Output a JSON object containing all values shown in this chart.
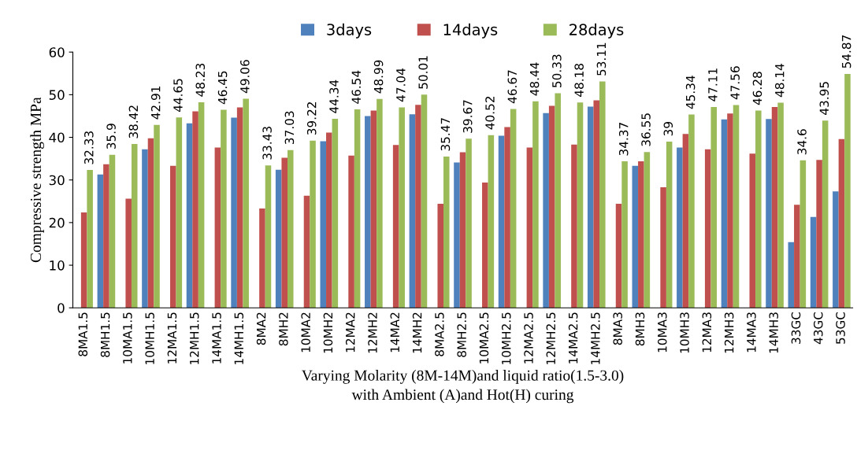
{
  "chart_data": {
    "type": "bar",
    "xlabel": "Varying Molarity (8M-14M)and liquid ratio(1.5-3.0)\nwith Ambient (A)and Hot(H) curing",
    "ylabel": "Compressive strength MPa",
    "categories": [
      "8MA1.5",
      "8MH1.5",
      "10MA1.5",
      "10MH1.5",
      "12MA1.5",
      "12MH1.5",
      "14MA1.5",
      "14MH1.5",
      "8MA2",
      "8MH2",
      "10MA2",
      "10MH2",
      "12MA2",
      "12MH2",
      "14MA2",
      "14MH2",
      "8MA2.5",
      "8MH2.5",
      "10MA2.5",
      "10MH2.5",
      "12MA2.5",
      "12MH2.5",
      "14MA2.5",
      "14MH2.5",
      "8MA3",
      "8MH3",
      "10MA3",
      "10MH3",
      "12MA3",
      "12MH3",
      "14MA3",
      "14MH3",
      "33GC",
      "43GC",
      "53GC"
    ],
    "series": [
      {
        "name": "3days",
        "color": "#4f81bd",
        "values": [
          null,
          31.3,
          null,
          37.2,
          null,
          43.3,
          null,
          44.6,
          null,
          32.4,
          null,
          39.1,
          null,
          45.0,
          null,
          45.4,
          null,
          34.1,
          null,
          40.4,
          null,
          45.7,
          null,
          47.2,
          null,
          33.3,
          null,
          37.6,
          null,
          44.2,
          null,
          44.3,
          15.4,
          21.3,
          27.3
        ]
      },
      {
        "name": "14days",
        "color": "#c0504d",
        "values": [
          22.4,
          33.7,
          25.6,
          39.8,
          33.3,
          46.1,
          37.6,
          47.0,
          23.3,
          35.2,
          26.3,
          41.1,
          35.7,
          46.3,
          38.2,
          47.6,
          24.4,
          36.5,
          29.4,
          42.4,
          37.6,
          47.4,
          38.3,
          48.7,
          24.4,
          34.4,
          28.3,
          40.8,
          37.2,
          45.6,
          36.2,
          47.1,
          24.2,
          34.7,
          39.6
        ]
      },
      {
        "name": "28days",
        "color": "#9bbb59",
        "values": [
          32.33,
          35.9,
          38.42,
          42.91,
          44.65,
          48.23,
          46.45,
          49.06,
          33.43,
          37.03,
          39.22,
          44.34,
          46.54,
          48.99,
          47.04,
          50.01,
          35.47,
          39.67,
          40.52,
          46.67,
          48.44,
          50.33,
          48.18,
          53.11,
          34.37,
          36.55,
          39,
          45.34,
          47.11,
          47.56,
          46.28,
          48.14,
          34.6,
          43.95,
          54.87
        ],
        "value_labels": [
          "32.33",
          "35.9",
          "38.42",
          "42.91",
          "44.65",
          "48.23",
          "46.45",
          "49.06",
          "33.43",
          "37.03",
          "39.22",
          "44.34",
          "46.54",
          "48.99",
          "47.04",
          "50.01",
          "35.47",
          "39.67",
          "40.52",
          "46.67",
          "48.44",
          "50.33",
          "48.18",
          "53.11",
          "34.37",
          "36.55",
          "39",
          "45.34",
          "47.11",
          "47.56",
          "46.28",
          "48.14",
          "34.6",
          "43.95",
          "54.87"
        ]
      }
    ],
    "ylim": [
      0,
      60
    ],
    "yticks": [
      0,
      10,
      20,
      30,
      40,
      50,
      60
    ],
    "grid": false,
    "legend": "top"
  }
}
